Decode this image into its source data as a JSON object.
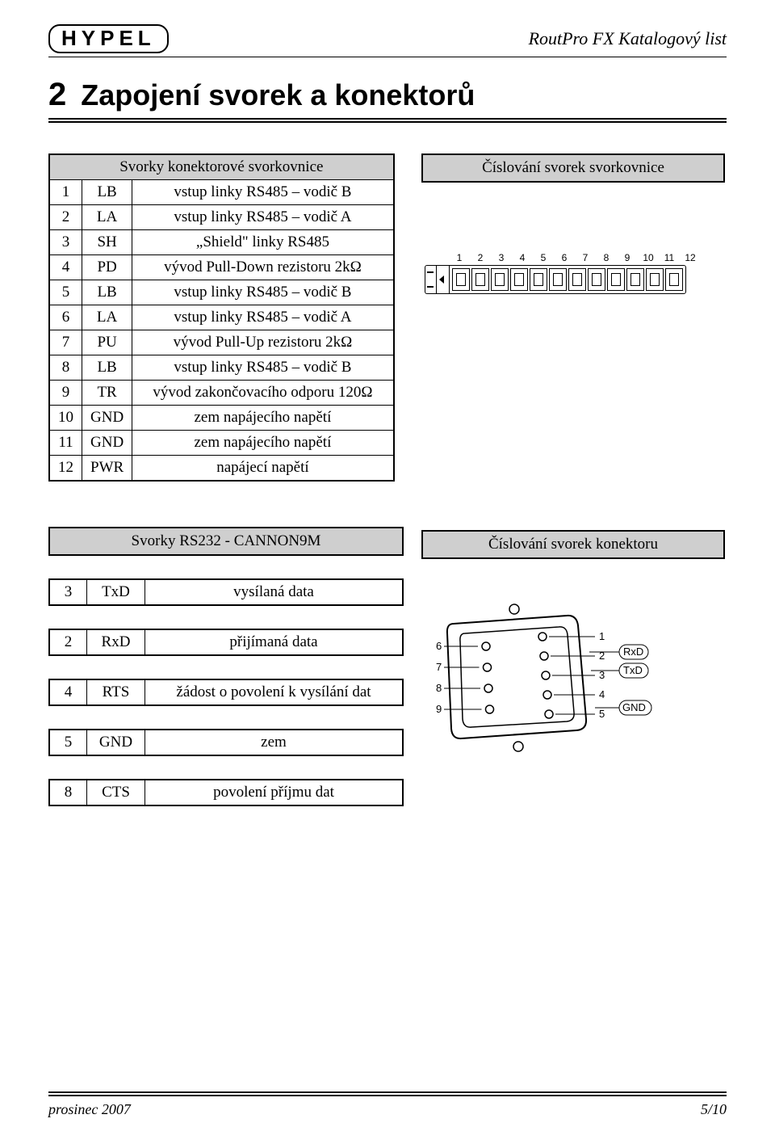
{
  "header": {
    "logo": "HYPEL",
    "doc_title": "RoutPro FX Katalogový list"
  },
  "section": {
    "number": "2",
    "title": "Zapojení svorek a konektorů"
  },
  "table1": {
    "header": "Svorky konektorové svorkovnice",
    "rows": [
      {
        "n": "1",
        "sym": "LB",
        "desc": "vstup linky RS485 – vodič B"
      },
      {
        "n": "2",
        "sym": "LA",
        "desc": "vstup linky RS485 – vodič A"
      },
      {
        "n": "3",
        "sym": "SH",
        "desc": "„Shield\" linky RS485"
      },
      {
        "n": "4",
        "sym": "PD",
        "desc": "vývod Pull-Down rezistoru 2kΩ"
      },
      {
        "n": "5",
        "sym": "LB",
        "desc": "vstup linky RS485 – vodič B"
      },
      {
        "n": "6",
        "sym": "LA",
        "desc": "vstup linky RS485 – vodič A"
      },
      {
        "n": "7",
        "sym": "PU",
        "desc": "vývod Pull-Up rezistoru 2kΩ"
      },
      {
        "n": "8",
        "sym": "LB",
        "desc": "vstup linky RS485 – vodič B"
      },
      {
        "n": "9",
        "sym": "TR",
        "desc": "vývod zakončovacího odporu 120Ω"
      },
      {
        "n": "10",
        "sym": "GND",
        "desc": "zem napájecího napětí"
      },
      {
        "n": "11",
        "sym": "GND",
        "desc": "zem napájecího napětí"
      },
      {
        "n": "12",
        "sym": "PWR",
        "desc": "napájecí napětí"
      }
    ]
  },
  "panel1": {
    "header": "Číslování svorek svorkovnice",
    "terminal_count": 12
  },
  "table2": {
    "header": "Svorky RS232 - CANNON9M",
    "rows": [
      {
        "n": "3",
        "sym": "TxD",
        "desc": "vysílaná data"
      },
      {
        "n": "2",
        "sym": "RxD",
        "desc": "přijímaná data"
      },
      {
        "n": "4",
        "sym": "RTS",
        "desc": "žádost o povolení k vysílání dat"
      },
      {
        "n": "5",
        "sym": "GND",
        "desc": "zem"
      },
      {
        "n": "8",
        "sym": "CTS",
        "desc": "povolení příjmu dat"
      }
    ]
  },
  "panel2": {
    "header": "Číslování svorek konektoru",
    "left_pins": [
      "6",
      "7",
      "8",
      "9"
    ],
    "right_pins": [
      "1",
      "2",
      "3",
      "4",
      "5"
    ],
    "labels": [
      "RxD",
      "TxD",
      "GND"
    ]
  },
  "footer": {
    "left": "prosinec 2007",
    "right": "5/10"
  }
}
